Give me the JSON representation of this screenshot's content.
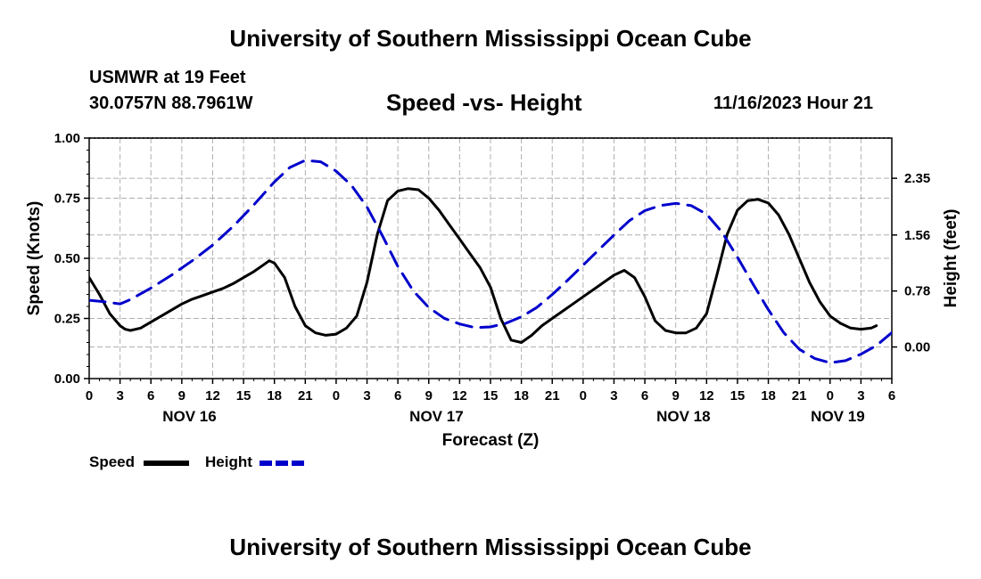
{
  "header": {
    "title": "University of Southern Mississippi Ocean Cube",
    "station": "USMWR at 19 Feet",
    "coordinates": "30.0757N  88.7961W",
    "subtitle": "Speed -vs- Height",
    "datetime": "11/16/2023 Hour 21"
  },
  "footer": {
    "title": "University of Southern Mississippi Ocean Cube"
  },
  "legend": {
    "speed_label": "Speed",
    "height_label": "Height"
  },
  "colors": {
    "speed": "#000000",
    "height": "#0000cc",
    "grid": "#b0b0b0"
  },
  "chart_data": {
    "type": "line",
    "title": "Speed -vs- Height",
    "xlabel": "Forecast (Z)",
    "ylabel": "Speed (Knots)",
    "y2label": "Height (feet)",
    "x_unit": "hours from NOV 16 00Z",
    "xlim": [
      0,
      78
    ],
    "ylim": [
      0,
      1
    ],
    "y2lim": [
      -0.44,
      2.91
    ],
    "x_ticks": [
      0,
      3,
      6,
      9,
      12,
      15,
      18,
      21,
      24,
      27,
      30,
      33,
      36,
      39,
      42,
      45,
      48,
      51,
      54,
      57,
      60,
      63,
      66,
      69,
      72,
      75,
      78
    ],
    "x_tick_labels": [
      "0",
      "3",
      "6",
      "9",
      "12",
      "15",
      "18",
      "21",
      "0",
      "3",
      "6",
      "9",
      "12",
      "15",
      "18",
      "21",
      "0",
      "3",
      "6",
      "9",
      "12",
      "15",
      "18",
      "21",
      "0",
      "3",
      "6"
    ],
    "date_labels": [
      {
        "x": 9.75,
        "label": "NOV 16"
      },
      {
        "x": 33.75,
        "label": "NOV 17"
      },
      {
        "x": 57.75,
        "label": "NOV 18"
      },
      {
        "x": 72.75,
        "label": "NOV 19"
      }
    ],
    "y_ticks": [
      0.0,
      0.25,
      0.5,
      0.75,
      1.0
    ],
    "y_tick_labels": [
      "0.00",
      "0.25",
      "0.50",
      "0.75",
      "1.00"
    ],
    "y2_ticks": [
      0.0,
      0.78,
      1.56,
      2.35
    ],
    "y2_tick_labels": [
      "0.00",
      "0.78",
      "1.56",
      "2.35"
    ],
    "series": [
      {
        "name": "Speed",
        "axis": "left",
        "style": "solid",
        "points": [
          [
            0,
            0.42
          ],
          [
            1,
            0.35
          ],
          [
            2,
            0.27
          ],
          [
            3,
            0.22
          ],
          [
            3.5,
            0.205
          ],
          [
            4,
            0.2
          ],
          [
            5,
            0.21
          ],
          [
            6,
            0.235
          ],
          [
            7,
            0.26
          ],
          [
            8,
            0.285
          ],
          [
            9,
            0.31
          ],
          [
            10,
            0.33
          ],
          [
            11,
            0.345
          ],
          [
            12,
            0.36
          ],
          [
            13,
            0.375
          ],
          [
            14,
            0.395
          ],
          [
            15,
            0.42
          ],
          [
            16,
            0.445
          ],
          [
            17,
            0.475
          ],
          [
            17.5,
            0.49
          ],
          [
            18,
            0.48
          ],
          [
            19,
            0.42
          ],
          [
            20,
            0.3
          ],
          [
            21,
            0.22
          ],
          [
            22,
            0.19
          ],
          [
            23,
            0.18
          ],
          [
            24,
            0.185
          ],
          [
            25,
            0.21
          ],
          [
            26,
            0.26
          ],
          [
            27,
            0.4
          ],
          [
            28,
            0.6
          ],
          [
            29,
            0.74
          ],
          [
            30,
            0.78
          ],
          [
            31,
            0.79
          ],
          [
            32,
            0.785
          ],
          [
            33,
            0.75
          ],
          [
            34,
            0.7
          ],
          [
            35,
            0.64
          ],
          [
            36,
            0.58
          ],
          [
            37,
            0.52
          ],
          [
            38,
            0.46
          ],
          [
            39,
            0.38
          ],
          [
            40,
            0.25
          ],
          [
            41,
            0.16
          ],
          [
            42,
            0.15
          ],
          [
            43,
            0.18
          ],
          [
            44,
            0.22
          ],
          [
            45,
            0.25
          ],
          [
            46,
            0.28
          ],
          [
            47,
            0.31
          ],
          [
            48,
            0.34
          ],
          [
            49,
            0.37
          ],
          [
            50,
            0.4
          ],
          [
            51,
            0.43
          ],
          [
            52,
            0.45
          ],
          [
            53,
            0.42
          ],
          [
            54,
            0.34
          ],
          [
            55,
            0.24
          ],
          [
            56,
            0.2
          ],
          [
            57,
            0.19
          ],
          [
            58,
            0.19
          ],
          [
            59,
            0.21
          ],
          [
            60,
            0.27
          ],
          [
            61,
            0.43
          ],
          [
            62,
            0.6
          ],
          [
            63,
            0.7
          ],
          [
            64,
            0.74
          ],
          [
            65,
            0.745
          ],
          [
            66,
            0.73
          ],
          [
            67,
            0.68
          ],
          [
            68,
            0.6
          ],
          [
            69,
            0.5
          ],
          [
            70,
            0.4
          ],
          [
            71,
            0.32
          ],
          [
            72,
            0.26
          ],
          [
            73,
            0.23
          ],
          [
            74,
            0.21
          ],
          [
            75,
            0.205
          ],
          [
            76,
            0.21
          ],
          [
            76.5,
            0.22
          ]
        ]
      },
      {
        "name": "Height",
        "axis": "right",
        "style": "dashed",
        "points": [
          [
            0,
            0.65
          ],
          [
            1.5,
            0.63
          ],
          [
            3,
            0.6
          ],
          [
            4,
            0.66
          ],
          [
            6,
            0.82
          ],
          [
            8,
            1.0
          ],
          [
            10,
            1.2
          ],
          [
            12,
            1.42
          ],
          [
            14,
            1.68
          ],
          [
            16,
            1.98
          ],
          [
            18,
            2.3
          ],
          [
            19.5,
            2.5
          ],
          [
            21,
            2.6
          ],
          [
            22.5,
            2.58
          ],
          [
            24,
            2.45
          ],
          [
            25.5,
            2.25
          ],
          [
            27,
            1.95
          ],
          [
            28.5,
            1.55
          ],
          [
            30,
            1.12
          ],
          [
            31.5,
            0.78
          ],
          [
            33,
            0.55
          ],
          [
            34.5,
            0.4
          ],
          [
            36,
            0.32
          ],
          [
            37.5,
            0.27
          ],
          [
            39,
            0.28
          ],
          [
            40.5,
            0.33
          ],
          [
            42,
            0.42
          ],
          [
            43.5,
            0.55
          ],
          [
            45,
            0.73
          ],
          [
            46.5,
            0.93
          ],
          [
            48,
            1.14
          ],
          [
            49.5,
            1.35
          ],
          [
            51,
            1.56
          ],
          [
            52.5,
            1.76
          ],
          [
            54,
            1.9
          ],
          [
            55.5,
            1.97
          ],
          [
            57,
            2.0
          ],
          [
            58.5,
            1.97
          ],
          [
            60,
            1.85
          ],
          [
            61.5,
            1.6
          ],
          [
            63,
            1.25
          ],
          [
            64.5,
            0.88
          ],
          [
            66,
            0.52
          ],
          [
            67.5,
            0.2
          ],
          [
            69,
            -0.03
          ],
          [
            70.5,
            -0.16
          ],
          [
            72,
            -0.22
          ],
          [
            73.5,
            -0.19
          ],
          [
            75,
            -0.1
          ],
          [
            76.5,
            0.02
          ],
          [
            78,
            0.2
          ]
        ]
      }
    ]
  }
}
